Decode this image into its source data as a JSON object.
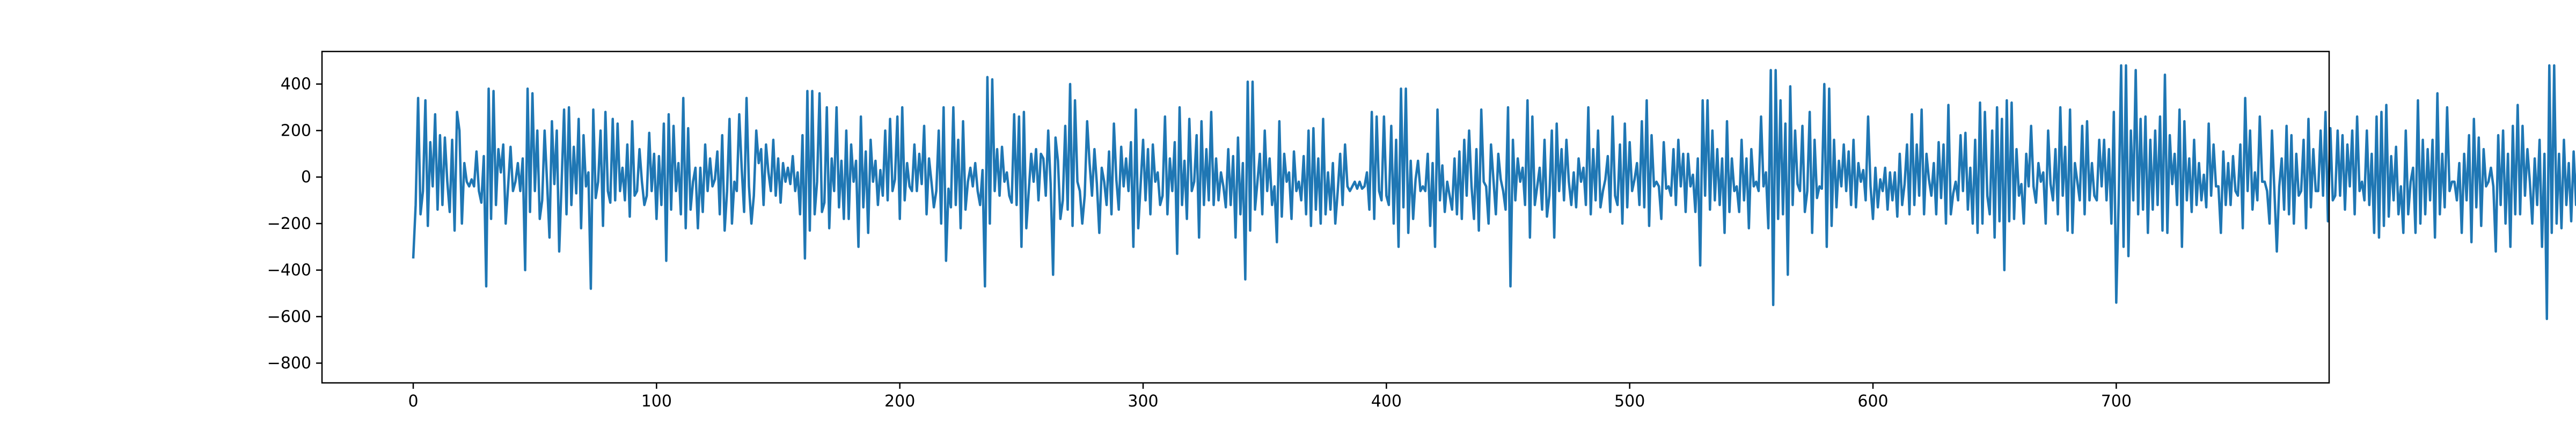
{
  "chart_data": {
    "type": "line",
    "title": "",
    "xlabel": "",
    "ylabel": "",
    "xlim": [
      -37.5,
      787.5
    ],
    "ylim": [
      -885,
      540
    ],
    "x_ticks": [
      0,
      100,
      200,
      300,
      400,
      500,
      600,
      700
    ],
    "y_ticks": [
      -800,
      -600,
      -400,
      -200,
      0,
      200,
      400
    ],
    "grid": false,
    "legend": "none",
    "colors": {
      "series": "#1f77b4",
      "axes": "#000000",
      "background": "#ffffff"
    },
    "series": [
      {
        "name": "",
        "values": [
          -350,
          -120,
          340,
          -160,
          -60,
          330,
          -210,
          150,
          -40,
          270,
          -140,
          180,
          -120,
          170,
          -20,
          -150,
          160,
          -230,
          280,
          200,
          -200,
          60,
          -20,
          -40,
          -10,
          -40,
          110,
          -60,
          -110,
          90,
          -470,
          380,
          -180,
          370,
          -120,
          120,
          20,
          140,
          -200,
          -40,
          130,
          -60,
          -20,
          60,
          -60,
          80,
          -400,
          380,
          -150,
          360,
          -60,
          200,
          -180,
          -100,
          200,
          -20,
          -260,
          240,
          -30,
          200,
          -320,
          -20,
          290,
          -160,
          300,
          -120,
          130,
          -70,
          250,
          -220,
          180,
          -40,
          20,
          -480,
          290,
          -90,
          -20,
          200,
          -210,
          280,
          -60,
          -110,
          250,
          -100,
          230,
          -60,
          40,
          -100,
          140,
          -170,
          240,
          -80,
          -60,
          120,
          -20,
          -120,
          -80,
          190,
          -60,
          100,
          -180,
          90,
          -120,
          230,
          -360,
          270,
          -140,
          220,
          -60,
          60,
          -160,
          340,
          -220,
          210,
          -140,
          -20,
          40,
          -220,
          40,
          -150,
          140,
          -60,
          80,
          -40,
          -10,
          110,
          -160,
          180,
          -230,
          -60,
          250,
          -200,
          -20,
          -60,
          270,
          40,
          -150,
          340,
          -40,
          -200,
          -80,
          200,
          60,
          120,
          -120,
          140,
          20,
          -60,
          160,
          -80,
          80,
          -110,
          60,
          -20,
          40,
          -30,
          90,
          -60,
          20,
          -160,
          180,
          -350,
          370,
          -230,
          370,
          -160,
          -20,
          360,
          -150,
          -110,
          300,
          -220,
          80,
          -60,
          300,
          -130,
          70,
          -180,
          200,
          -180,
          140,
          -20,
          70,
          -300,
          260,
          -130,
          110,
          -240,
          160,
          -20,
          70,
          -120,
          30,
          -80,
          200,
          -100,
          250,
          -60,
          -10,
          260,
          -180,
          300,
          -100,
          60,
          -40,
          -60,
          140,
          -60,
          100,
          -30,
          220,
          -160,
          80,
          -20,
          -130,
          -60,
          200,
          -200,
          300,
          -360,
          -50,
          -130,
          300,
          -120,
          160,
          -220,
          240,
          -140,
          -20,
          40,
          -40,
          60,
          -60,
          -120,
          30,
          -470,
          430,
          -200,
          420,
          -60,
          120,
          -80,
          130,
          -20,
          20,
          -80,
          -110,
          270,
          -120,
          260,
          -300,
          280,
          -220,
          -60,
          100,
          -20,
          120,
          -100,
          100,
          80,
          -80,
          200,
          -30,
          -420,
          170,
          70,
          -180,
          -100,
          220,
          -140,
          400,
          -210,
          330,
          -20,
          -60,
          -200,
          -80,
          240,
          60,
          -80,
          120,
          -30,
          -240,
          40,
          -20,
          -120,
          110,
          -160,
          230,
          -10,
          -140,
          130,
          -40,
          80,
          -60,
          150,
          -300,
          290,
          -220,
          -30,
          160,
          -100,
          120,
          -160,
          140,
          -20,
          20,
          -120,
          -80,
          260,
          -160,
          80,
          -60,
          150,
          -330,
          300,
          -120,
          70,
          -180,
          250,
          -60,
          -20,
          180,
          -260,
          240,
          -120,
          120,
          -100,
          280,
          -120,
          80,
          -100,
          20,
          -40,
          -130,
          120,
          -120,
          90,
          -260,
          170,
          -160,
          60,
          -440,
          410,
          -230,
          410,
          -140,
          -20,
          100,
          -160,
          200,
          -60,
          80,
          -120,
          -40,
          -280,
          240,
          -170,
          100,
          -20,
          20,
          -180,
          110,
          -60,
          -20,
          -100,
          90,
          -160,
          200,
          -210,
          210,
          -140,
          80,
          -200,
          250,
          -160,
          20,
          -140,
          60,
          -200,
          -60,
          100,
          -120,
          140,
          -40,
          -60,
          -40,
          -20,
          -50,
          -20,
          -50,
          -40,
          20,
          -140,
          280,
          -180,
          260,
          -60,
          -100,
          260,
          -80,
          -120,
          220,
          -200,
          160,
          -300,
          380,
          -130,
          380,
          -240,
          70,
          -180,
          -10,
          70,
          -60,
          -40,
          -60,
          100,
          -210,
          60,
          -300,
          290,
          -100,
          50,
          -150,
          -20,
          -80,
          -140,
          80,
          -160,
          110,
          -180,
          160,
          -80,
          200,
          -40,
          -180,
          120,
          -230,
          290,
          -20,
          -40,
          -200,
          140,
          -10,
          -160,
          100,
          -10,
          -60,
          -140,
          300,
          -470,
          160,
          -100,
          80,
          -20,
          40,
          -120,
          330,
          -260,
          260,
          -120,
          -40,
          40,
          -140,
          160,
          -170,
          -80,
          200,
          -260,
          230,
          -60,
          120,
          -100,
          160,
          -20,
          -120,
          20,
          -130,
          80,
          -20,
          40,
          -120,
          300,
          -160,
          120,
          -100,
          200,
          -130,
          -60,
          -10,
          90,
          -150,
          260,
          -80,
          -120,
          140,
          -200,
          230,
          -130,
          150,
          -60,
          -10,
          60,
          -120,
          240,
          -130,
          330,
          -210,
          180,
          -40,
          -20,
          -40,
          -180,
          150,
          -50,
          -40,
          -80,
          120,
          -120,
          160,
          -40,
          100,
          -150,
          100,
          -40,
          10,
          -150,
          80,
          -380,
          330,
          -80,
          330,
          -140,
          200,
          -100,
          120,
          -120,
          80,
          -240,
          240,
          -150,
          80,
          -60,
          -40,
          -150,
          160,
          -100,
          80,
          -220,
          120,
          -40,
          -20,
          -60,
          260,
          -40,
          20,
          -220,
          460,
          -550,
          460,
          -180,
          330,
          -160,
          230,
          -420,
          390,
          -120,
          200,
          -30,
          -60,
          220,
          -150,
          -60,
          280,
          -240,
          160,
          -90,
          -40,
          -50,
          400,
          -300,
          380,
          -210,
          160,
          -130,
          70,
          -40,
          140,
          -60,
          110,
          -120,
          160,
          -130,
          60,
          -20,
          30,
          -100,
          260,
          -40,
          -180,
          40,
          -130,
          -10,
          -60,
          40,
          -140,
          20,
          -100,
          20,
          -170,
          100,
          -120,
          -30,
          140,
          -160,
          270,
          -120,
          140,
          -80,
          290,
          -160,
          100,
          -10,
          -80,
          60,
          -160,
          150,
          -90,
          140,
          -200,
          310,
          -160,
          -70,
          -20,
          -100,
          180,
          -60,
          190,
          -140,
          40,
          -200,
          160,
          -240,
          320,
          -200,
          280,
          -80,
          -160,
          200,
          -260,
          300,
          -190,
          250,
          -400,
          330,
          -190,
          320,
          -180,
          120,
          -80,
          -30,
          -200,
          100,
          -40,
          220,
          -40,
          -110,
          60,
          -20,
          20,
          -200,
          200,
          -30,
          -100,
          120,
          -160,
          300,
          -80,
          130,
          -230,
          290,
          -240,
          60,
          -20,
          -100,
          220,
          -160,
          240,
          -100,
          60,
          -80,
          -100,
          160,
          -40,
          160,
          -100,
          120,
          -200,
          280,
          -540,
          -100,
          480,
          -300,
          480,
          -340,
          200,
          -100,
          460,
          -160,
          250,
          -140,
          260,
          -240,
          160,
          -140,
          200,
          -120,
          260,
          -230,
          440,
          -240,
          180,
          -30,
          100,
          -120,
          290,
          -300,
          240,
          -100,
          80,
          -150,
          160,
          -120,
          60,
          -100,
          10,
          -130,
          230,
          -80,
          140,
          -40,
          -40,
          -240,
          110,
          -120,
          60,
          -120,
          90,
          -60,
          -80,
          140,
          -220,
          340,
          -60,
          200,
          -140,
          20,
          -100,
          260,
          -20,
          -20,
          -60,
          -200,
          200,
          -60,
          -320,
          -40,
          80,
          -140,
          220,
          -160,
          180,
          -200,
          100,
          -80,
          -60,
          160,
          -220,
          250,
          -130,
          120,
          -60,
          -60,
          200,
          -80,
          280,
          -190,
          210,
          -100,
          -80,
          200,
          -80,
          180,
          -140,
          140,
          -40,
          200,
          -160,
          260,
          -60,
          -20,
          -100,
          200,
          -120,
          100,
          -240,
          260,
          -260,
          280,
          -210,
          310,
          -170,
          90,
          -100,
          130,
          -160,
          -40,
          -240,
          200,
          -160,
          -20,
          40,
          -240,
          330,
          -200,
          160,
          -160,
          120,
          -100,
          160,
          -260,
          360,
          -160,
          100,
          -130,
          300,
          -60,
          -20,
          -20,
          -100,
          60,
          -240,
          100,
          -100,
          180,
          -280,
          250,
          -130,
          170,
          -210,
          120,
          -40,
          -20,
          40,
          -40,
          -320,
          180,
          -120,
          200,
          -200,
          100,
          -300,
          220,
          -160,
          310,
          -160,
          220,
          -80,
          120,
          -20,
          -200,
          80,
          -120,
          160,
          -300,
          100,
          -610,
          480,
          -240,
          480,
          -200,
          100,
          -220,
          160,
          -120,
          60,
          -190,
          110,
          -120,
          180,
          -60,
          -120,
          210,
          -120,
          80,
          -100,
          160,
          -220,
          320,
          -120,
          160,
          -100,
          60,
          -200,
          120,
          -220,
          -10,
          60,
          -120,
          200,
          -280,
          320,
          -220,
          200,
          -30,
          80,
          -200,
          140,
          -500,
          200,
          -80,
          320,
          -220,
          200,
          -60,
          160,
          -300,
          240,
          -290,
          60,
          -220,
          400,
          -740,
          430,
          -350,
          170,
          -420,
          380,
          -200,
          -100,
          -120,
          200,
          -260,
          420,
          -820,
          440,
          -400,
          420,
          -160,
          300,
          -130,
          -60,
          140,
          -240,
          380,
          -300,
          240,
          -130,
          -20,
          -230,
          420,
          -700,
          460,
          -280,
          460,
          -330,
          180,
          -220,
          240,
          -180,
          380,
          -300,
          220,
          -240,
          -20,
          140,
          -60,
          170,
          -240,
          110,
          -120,
          -30,
          200,
          -180,
          -60,
          -140,
          110,
          -620,
          400,
          -300,
          380,
          -300,
          -80,
          150,
          -60,
          100,
          -80,
          -130,
          110,
          -40,
          -20,
          -50,
          -40,
          -30
        ]
      }
    ]
  }
}
